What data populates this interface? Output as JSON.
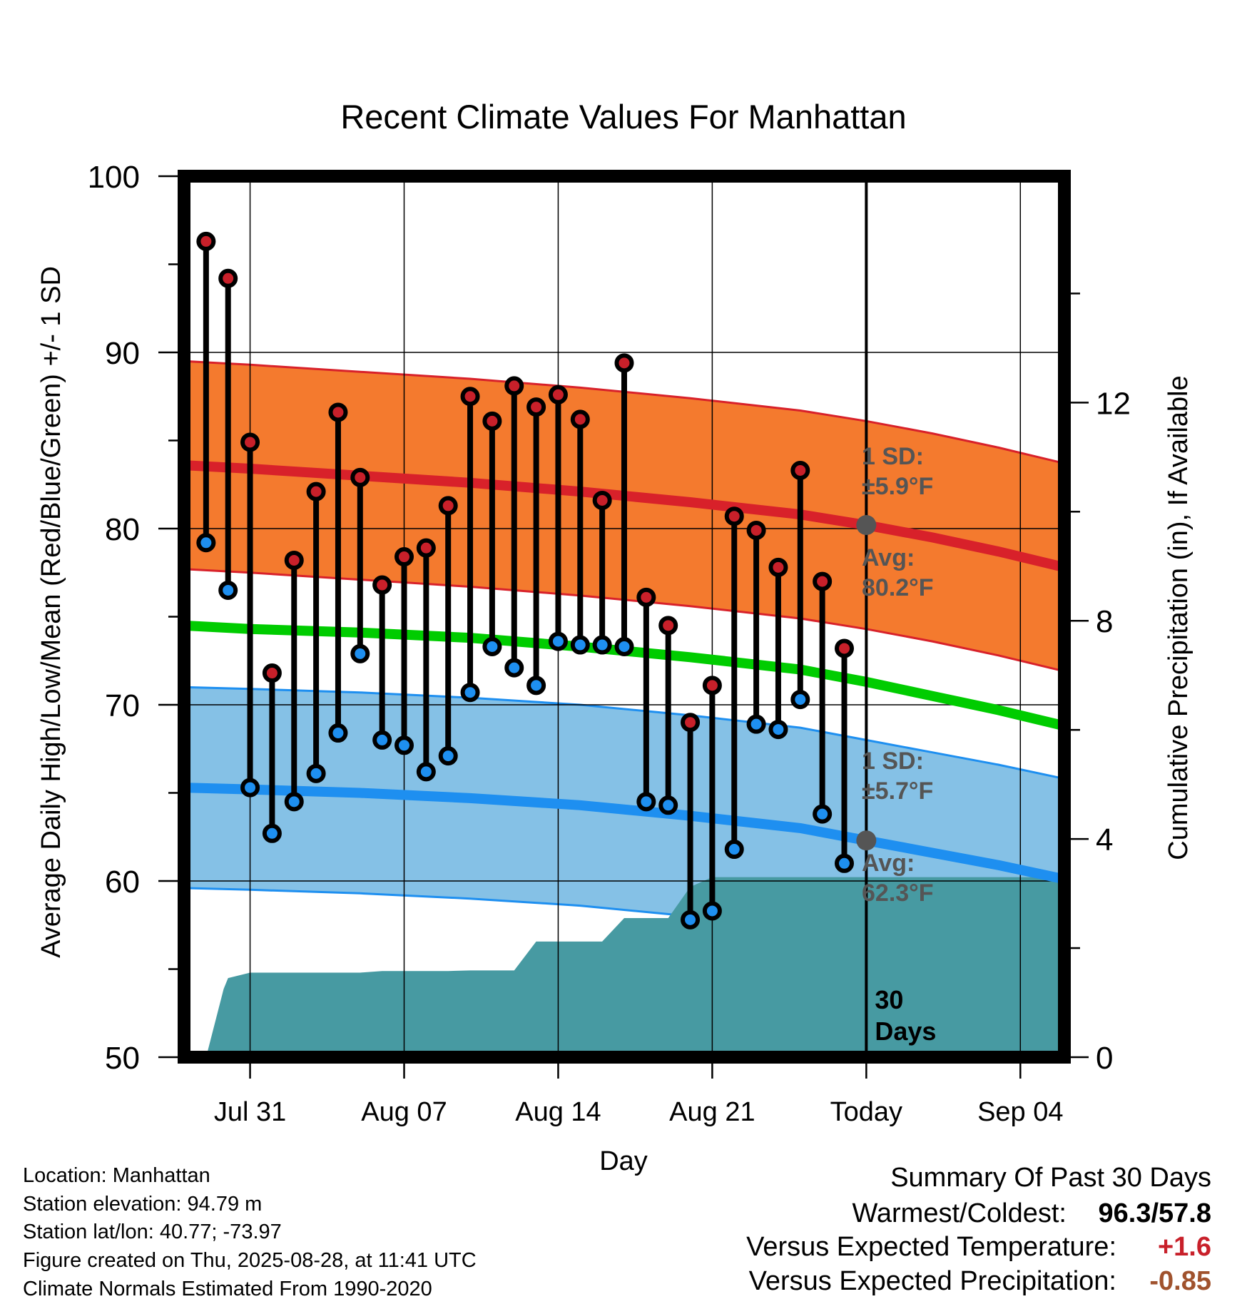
{
  "chart_data": {
    "type": "line",
    "title": "Recent Climate Values For Manhattan",
    "xlabel": "Day",
    "ylabel": "Average Daily High/Low/Mean (Red/Blue/Green) +/- 1 SD",
    "ylabel_right": "Cumulative Precipitation (in), If Available",
    "ylim": [
      50,
      100
    ],
    "ylim_right": [
      0,
      16.15
    ],
    "y_ticks": [
      "50",
      "60",
      "70",
      "80",
      "90",
      "100"
    ],
    "y_ticks_right": [
      "0",
      "4",
      "8",
      "12"
    ],
    "x_ticks": [
      "Jul 31",
      "Aug 07",
      "Aug 14",
      "Aug 21",
      "Today",
      "Sep 04"
    ],
    "x_tick_days": [
      0,
      7,
      14,
      21,
      28,
      35
    ],
    "x_range_days": [
      -3,
      37
    ],
    "grid": true,
    "today_day": 28,
    "today_label": [
      "30",
      "Days"
    ],
    "days": [
      -2,
      -1,
      0,
      1,
      2,
      3,
      4,
      5,
      6,
      7,
      8,
      9,
      10,
      11,
      12,
      13,
      14,
      15,
      16,
      17,
      18,
      19,
      20,
      21,
      22,
      23,
      24,
      25,
      26,
      27
    ],
    "series": [
      {
        "name": "High",
        "color": "#c8202a",
        "values": [
          96.3,
          94.2,
          84.9,
          71.8,
          78.2,
          82.1,
          86.6,
          82.9,
          76.8,
          78.4,
          78.9,
          81.3,
          87.5,
          86.1,
          88.1,
          86.9,
          87.6,
          86.2,
          81.6,
          89.4,
          76.1,
          74.5,
          69.0,
          71.1,
          80.7,
          79.9,
          77.8,
          83.3,
          77.0,
          73.2
        ]
      },
      {
        "name": "Low",
        "color": "#1e8ff0",
        "values": [
          79.2,
          76.5,
          65.3,
          62.7,
          64.5,
          66.1,
          68.4,
          72.9,
          68.0,
          67.7,
          66.2,
          67.1,
          70.7,
          73.3,
          72.1,
          71.1,
          73.6,
          73.4,
          73.4,
          73.3,
          64.5,
          64.3,
          57.8,
          58.3,
          61.8,
          68.9,
          68.6,
          70.3,
          63.8,
          61.0
        ]
      }
    ],
    "normals": {
      "days": [
        -3,
        0,
        5,
        10,
        15,
        20,
        25,
        28,
        31,
        34,
        37
      ],
      "high_avg": [
        83.6,
        83.4,
        83.0,
        82.6,
        82.1,
        81.5,
        80.8,
        80.2,
        79.5,
        78.7,
        77.8
      ],
      "high_sd": 5.9,
      "low_avg": [
        65.3,
        65.2,
        65.0,
        64.7,
        64.3,
        63.7,
        63.0,
        62.3,
        61.6,
        60.9,
        60.1
      ],
      "low_sd": 5.7,
      "mean_avg": [
        74.5,
        74.3,
        74.1,
        73.8,
        73.3,
        72.7,
        72.0,
        71.3,
        70.5,
        69.7,
        68.8
      ],
      "high_band_color": "#f47a2e",
      "low_band_color": "#85c1e6",
      "mean_color": "#00cc00",
      "precip_color": "#479aa2"
    },
    "precip_cumulative": {
      "days": [
        -2,
        -1.2,
        -1,
        0,
        3,
        5,
        6,
        9,
        10,
        11,
        12,
        13,
        14,
        15,
        16,
        17,
        18,
        19,
        20,
        21,
        22,
        24,
        26,
        28,
        37
      ],
      "values": [
        0,
        1.25,
        1.45,
        1.55,
        1.55,
        1.55,
        1.58,
        1.58,
        1.59,
        1.59,
        1.59,
        2.12,
        2.12,
        2.12,
        2.12,
        2.55,
        2.55,
        2.55,
        3.12,
        3.3,
        3.3,
        3.3,
        3.3,
        3.3,
        3.3
      ]
    },
    "annotations": {
      "high_sd_label": [
        "1 SD:",
        "±5.9°F"
      ],
      "high_avg_label": [
        "Avg:",
        "80.2°F"
      ],
      "low_sd_label": [
        "1 SD:",
        "±5.7°F"
      ],
      "low_avg_label": [
        "Avg:",
        "62.3°F"
      ]
    }
  },
  "info": {
    "location": "Location: Manhattan",
    "elevation": "Station elevation: 94.79 m",
    "latlon": "Station lat/lon: 40.77; -73.97",
    "created": "Figure created on Thu, 2025-08-28, at 11:41 UTC",
    "normals": "Climate Normals Estimated From 1990-2020"
  },
  "summary": {
    "title": "Summary Of Past 30 Days",
    "warm_cold_label": "Warmest/Coldest:",
    "warmest": "96.3",
    "slash": "/",
    "coldest": "57.8",
    "temp_label": "Versus Expected Temperature:",
    "temp_value": "+1.6",
    "temp_color": "#c8202a",
    "precip_label": "Versus Expected Precipitation:",
    "precip_value": "-0.85",
    "precip_color": "#a0522d"
  }
}
